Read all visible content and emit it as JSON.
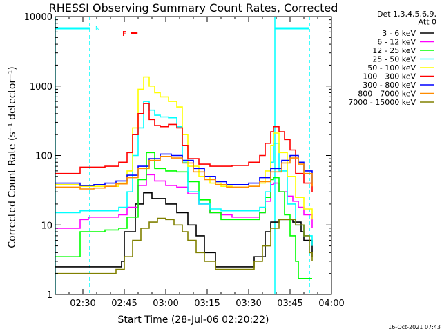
{
  "chart_data": {
    "type": "line",
    "title": "RHESSI Observing Summary Count Rates, Corrected",
    "xlabel": "Start Time (28-Jul-06 02:20:22)",
    "ylabel": "Corrected Count Rate (s⁻¹ detector⁻¹)",
    "yscale": "log",
    "ylim": [
      1,
      10000
    ],
    "xlim_minutes": [
      0,
      100
    ],
    "x_tick_labels": [
      "02:30",
      "02:45",
      "03:00",
      "03:15",
      "03:30",
      "03:45",
      "04:00"
    ],
    "x_tick_minutes": [
      10,
      25,
      40,
      55,
      70,
      85,
      100
    ],
    "y_tick_labels": [
      "1",
      "10",
      "100",
      "1000",
      "10000"
    ],
    "y_tick_values": [
      1,
      10,
      100,
      1000,
      10000
    ],
    "legend_header": [
      "Det 1,3,4,5,6,9,",
      "Att 0"
    ],
    "legend_position": "right",
    "night_flag": "N",
    "flare_flag": "F",
    "footer_date": "16-Oct-2021 07:43",
    "night_intervals_minutes": [
      [
        0,
        12.5
      ],
      [
        79.5,
        92
      ]
    ],
    "series": [
      {
        "name": "3 - 6 keV",
        "color": "#000000",
        "x": [
          0,
          12,
          24,
          25,
          29,
          32,
          35,
          40,
          44,
          48,
          51,
          54,
          58,
          64,
          70,
          72,
          76,
          78,
          81,
          84,
          86,
          89,
          90,
          93
        ],
        "y": [
          2.5,
          2.5,
          3.0,
          8.0,
          20,
          29,
          24,
          20,
          15,
          10,
          7,
          4,
          2.5,
          2.5,
          2.5,
          3.5,
          8,
          11,
          12,
          12,
          11,
          8,
          6,
          3.5
        ]
      },
      {
        "name": "6 - 12 keV",
        "color": "#ff00ff",
        "x": [
          0,
          8.6,
          9,
          12,
          18,
          23,
          26,
          30,
          33,
          36,
          40,
          44,
          48,
          52,
          56,
          60,
          64,
          70,
          74,
          76,
          78,
          79,
          81,
          84,
          86,
          88,
          90,
          93
        ],
        "y": [
          9,
          9,
          12,
          13,
          13,
          14,
          18,
          37,
          53,
          43,
          37,
          35,
          28,
          20,
          15,
          14,
          13,
          13,
          15,
          22,
          38,
          40,
          30,
          26,
          22,
          18,
          14,
          9
        ]
      },
      {
        "name": "12 - 25 keV",
        "color": "#00ff00",
        "x": [
          0,
          8.6,
          9,
          12,
          18,
          23,
          26,
          30,
          33,
          36,
          40,
          44,
          48,
          52,
          56,
          60,
          64,
          70,
          74,
          76,
          78,
          79,
          81,
          83,
          85,
          87,
          88,
          90,
          93
        ],
        "y": [
          3.5,
          3.5,
          8,
          8,
          8.5,
          9,
          13,
          45,
          110,
          65,
          60,
          58,
          42,
          23,
          15,
          12,
          12,
          12,
          15,
          25,
          45,
          48,
          30,
          14,
          7,
          3,
          1.7,
          1.7,
          1.7
        ]
      },
      {
        "name": "25 - 50 keV",
        "color": "#00ffff",
        "x": [
          0,
          8.6,
          9,
          18,
          23,
          26,
          28,
          30,
          32,
          34,
          36,
          38,
          41,
          44,
          46,
          48,
          52,
          56,
          60,
          64,
          70,
          74,
          76,
          78,
          79,
          81,
          84,
          87,
          90,
          93
        ],
        "y": [
          15,
          15,
          16,
          16,
          18,
          30,
          100,
          250,
          600,
          450,
          380,
          360,
          350,
          260,
          80,
          30,
          20,
          17,
          16,
          16,
          16,
          18,
          30,
          80,
          150,
          60,
          20,
          10,
          7,
          5
        ]
      },
      {
        "name": "50 - 100 keV",
        "color": "#ffff00",
        "x": [
          0,
          8.6,
          9,
          18,
          23,
          26,
          28,
          30,
          32,
          34,
          36,
          38,
          41,
          44,
          46,
          48,
          52,
          56,
          60,
          64,
          70,
          74,
          76,
          78,
          79,
          81,
          84,
          87,
          90,
          93
        ],
        "y": [
          38,
          38,
          36,
          36,
          40,
          60,
          250,
          900,
          1350,
          1000,
          800,
          700,
          600,
          500,
          200,
          70,
          50,
          40,
          36,
          35,
          36,
          40,
          60,
          140,
          210,
          110,
          50,
          25,
          17,
          12
        ]
      },
      {
        "name": "100 - 300 keV",
        "color": "#ff0000",
        "x": [
          0,
          8.6,
          9,
          18,
          23,
          26,
          28,
          30,
          32,
          34,
          36,
          38,
          41,
          44,
          46,
          48,
          52,
          56,
          60,
          64,
          70,
          74,
          76,
          78,
          79,
          81,
          83,
          85,
          87,
          90,
          93
        ],
        "y": [
          55,
          55,
          68,
          70,
          80,
          110,
          200,
          400,
          560,
          330,
          270,
          260,
          280,
          250,
          140,
          90,
          75,
          70,
          70,
          72,
          80,
          100,
          150,
          220,
          260,
          220,
          170,
          120,
          55,
          40,
          30
        ]
      },
      {
        "name": "300 - 800 keV",
        "color": "#0000ff",
        "x": [
          0,
          9,
          14,
          18,
          22,
          26,
          30,
          34,
          38,
          42,
          46,
          50,
          54,
          58,
          62,
          66,
          70,
          74,
          78,
          82,
          85,
          88,
          90,
          93
        ],
        "y": [
          40,
          37,
          38,
          40,
          43,
          52,
          70,
          90,
          105,
          100,
          85,
          65,
          50,
          42,
          38,
          38,
          40,
          48,
          65,
          85,
          100,
          80,
          60,
          40
        ]
      },
      {
        "name": "800 - 7000 keV",
        "color": "#ff8c00",
        "x": [
          0,
          9,
          14,
          18,
          22,
          26,
          30,
          34,
          38,
          42,
          46,
          50,
          54,
          58,
          62,
          66,
          70,
          74,
          78,
          82,
          85,
          88,
          90,
          93
        ],
        "y": [
          35,
          33,
          34,
          36,
          39,
          48,
          65,
          85,
          97,
          92,
          78,
          58,
          45,
          38,
          35,
          35,
          36,
          42,
          58,
          78,
          92,
          75,
          55,
          36
        ]
      },
      {
        "name": "7000 - 15000 keV",
        "color": "#808000",
        "x": [
          0,
          8,
          14,
          18,
          22,
          25,
          28,
          31,
          34,
          37,
          40,
          43,
          46,
          48,
          51,
          54,
          58,
          64,
          70,
          72,
          75,
          78,
          81,
          84,
          87,
          90,
          92,
          93
        ],
        "y": [
          2.0,
          2.0,
          2.0,
          2.0,
          2.3,
          3.5,
          6,
          9,
          11,
          12.5,
          12,
          10,
          8,
          6,
          4,
          3,
          2.3,
          2.3,
          2.3,
          3,
          5,
          9,
          12,
          12,
          10,
          7,
          4,
          3
        ]
      }
    ]
  }
}
